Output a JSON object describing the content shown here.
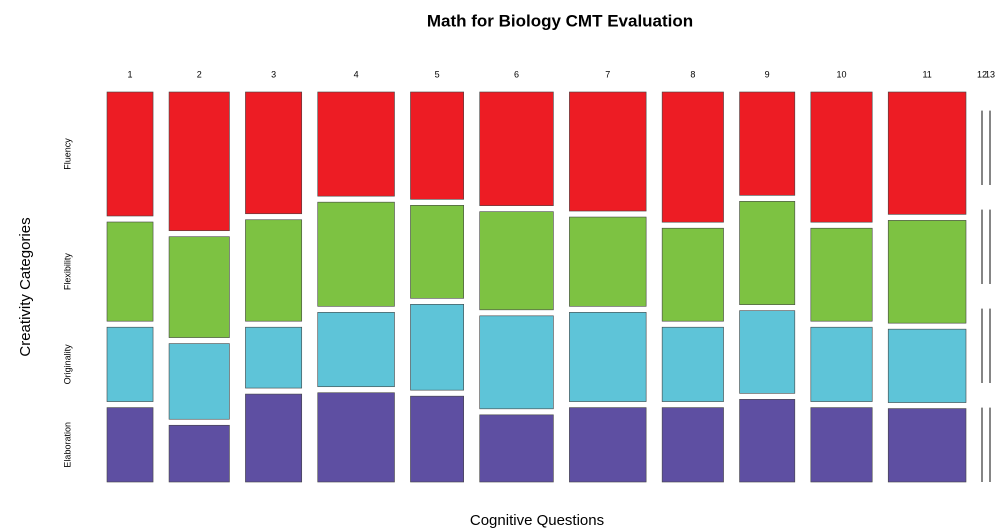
{
  "chart_data": {
    "type": "mosaic",
    "title": "Math for Biology CMT Evaluation",
    "x_label": "Cognitive Questions",
    "y_label": "Creativity Categories",
    "categories": [
      "1",
      "2",
      "3",
      "4",
      "5",
      "6",
      "7",
      "8",
      "9",
      "10",
      "11",
      "12",
      "13"
    ],
    "series": [
      {
        "name": "Fluency",
        "color": "#ed1c24",
        "values": [
          15,
          22,
          18,
          21,
          15,
          22,
          24,
          21,
          15,
          21,
          25,
          0,
          0
        ]
      },
      {
        "name": "Flexibility",
        "color": "#7dc242",
        "values": [
          12,
          16,
          15,
          21,
          13,
          19,
          18,
          15,
          15,
          15,
          21,
          0,
          0
        ]
      },
      {
        "name": "Originality",
        "color": "#5ec4d8",
        "values": [
          9,
          12,
          9,
          15,
          12,
          18,
          18,
          12,
          12,
          12,
          15,
          0,
          0
        ]
      },
      {
        "name": "Elaboration",
        "color": "#5e4fa2",
        "values": [
          9,
          9,
          13,
          18,
          12,
          13,
          15,
          12,
          12,
          12,
          15,
          0,
          0
        ]
      }
    ]
  }
}
